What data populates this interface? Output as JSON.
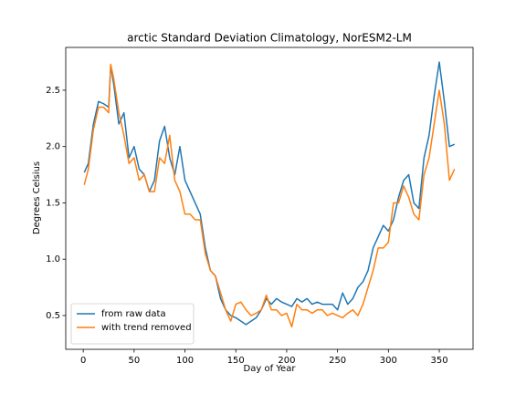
{
  "chart_data": {
    "type": "line",
    "title": "arctic Standard Deviation Climatology, NorESM2-LM",
    "x_label": "Day of Year",
    "y_label": "Degrees Celsius",
    "x": [
      1,
      5,
      10,
      15,
      20,
      25,
      27,
      30,
      35,
      40,
      45,
      50,
      55,
      60,
      65,
      70,
      75,
      80,
      85,
      90,
      95,
      100,
      105,
      110,
      115,
      120,
      125,
      130,
      135,
      140,
      145,
      150,
      155,
      160,
      165,
      170,
      175,
      180,
      185,
      190,
      195,
      200,
      205,
      210,
      215,
      220,
      225,
      230,
      235,
      240,
      245,
      250,
      255,
      260,
      265,
      270,
      275,
      280,
      285,
      290,
      295,
      300,
      305,
      310,
      315,
      320,
      325,
      330,
      335,
      340,
      345,
      350,
      355,
      360,
      365
    ],
    "series": [
      {
        "name": "from raw data",
        "color": "#1f77b4",
        "values": [
          1.77,
          1.85,
          2.2,
          2.4,
          2.38,
          2.35,
          2.72,
          2.55,
          2.2,
          2.3,
          1.9,
          2.0,
          1.8,
          1.75,
          1.6,
          1.7,
          2.05,
          2.18,
          1.9,
          1.75,
          2.0,
          1.7,
          1.6,
          1.5,
          1.4,
          1.1,
          0.9,
          0.85,
          0.65,
          0.55,
          0.5,
          0.48,
          0.45,
          0.42,
          0.45,
          0.48,
          0.55,
          0.65,
          0.6,
          0.65,
          0.62,
          0.6,
          0.58,
          0.65,
          0.62,
          0.65,
          0.6,
          0.62,
          0.6,
          0.6,
          0.6,
          0.55,
          0.7,
          0.6,
          0.65,
          0.75,
          0.8,
          0.9,
          1.1,
          1.2,
          1.3,
          1.25,
          1.35,
          1.55,
          1.7,
          1.75,
          1.5,
          1.45,
          1.9,
          2.1,
          2.45,
          2.75,
          2.4,
          2.0,
          2.02
        ]
      },
      {
        "name": "with trend removed",
        "color": "#ff7f0e",
        "values": [
          1.66,
          1.8,
          2.15,
          2.35,
          2.35,
          2.3,
          2.73,
          2.6,
          2.3,
          2.1,
          1.85,
          1.9,
          1.7,
          1.75,
          1.6,
          1.6,
          1.9,
          1.85,
          2.1,
          1.7,
          1.6,
          1.4,
          1.4,
          1.35,
          1.35,
          1.05,
          0.9,
          0.85,
          0.7,
          0.55,
          0.45,
          0.6,
          0.62,
          0.55,
          0.5,
          0.52,
          0.55,
          0.68,
          0.55,
          0.55,
          0.5,
          0.52,
          0.4,
          0.6,
          0.55,
          0.55,
          0.52,
          0.55,
          0.55,
          0.5,
          0.52,
          0.5,
          0.48,
          0.52,
          0.55,
          0.5,
          0.6,
          0.75,
          0.9,
          1.1,
          1.1,
          1.15,
          1.5,
          1.5,
          1.65,
          1.55,
          1.4,
          1.35,
          1.75,
          1.9,
          2.2,
          2.5,
          2.2,
          1.7,
          1.8
        ]
      }
    ],
    "xlim": [
      -17.2,
      383.2
    ],
    "xticks": [
      0,
      50,
      100,
      150,
      200,
      250,
      300,
      350
    ],
    "ylim": [
      0.2,
      2.88
    ],
    "yticks": [
      0.5,
      {
        "value": 1,
        "label": "1.0"
      },
      1.5,
      {
        "value": 2,
        "label": "2.0"
      },
      2.5
    ],
    "grid": false,
    "legend": "lower left"
  }
}
